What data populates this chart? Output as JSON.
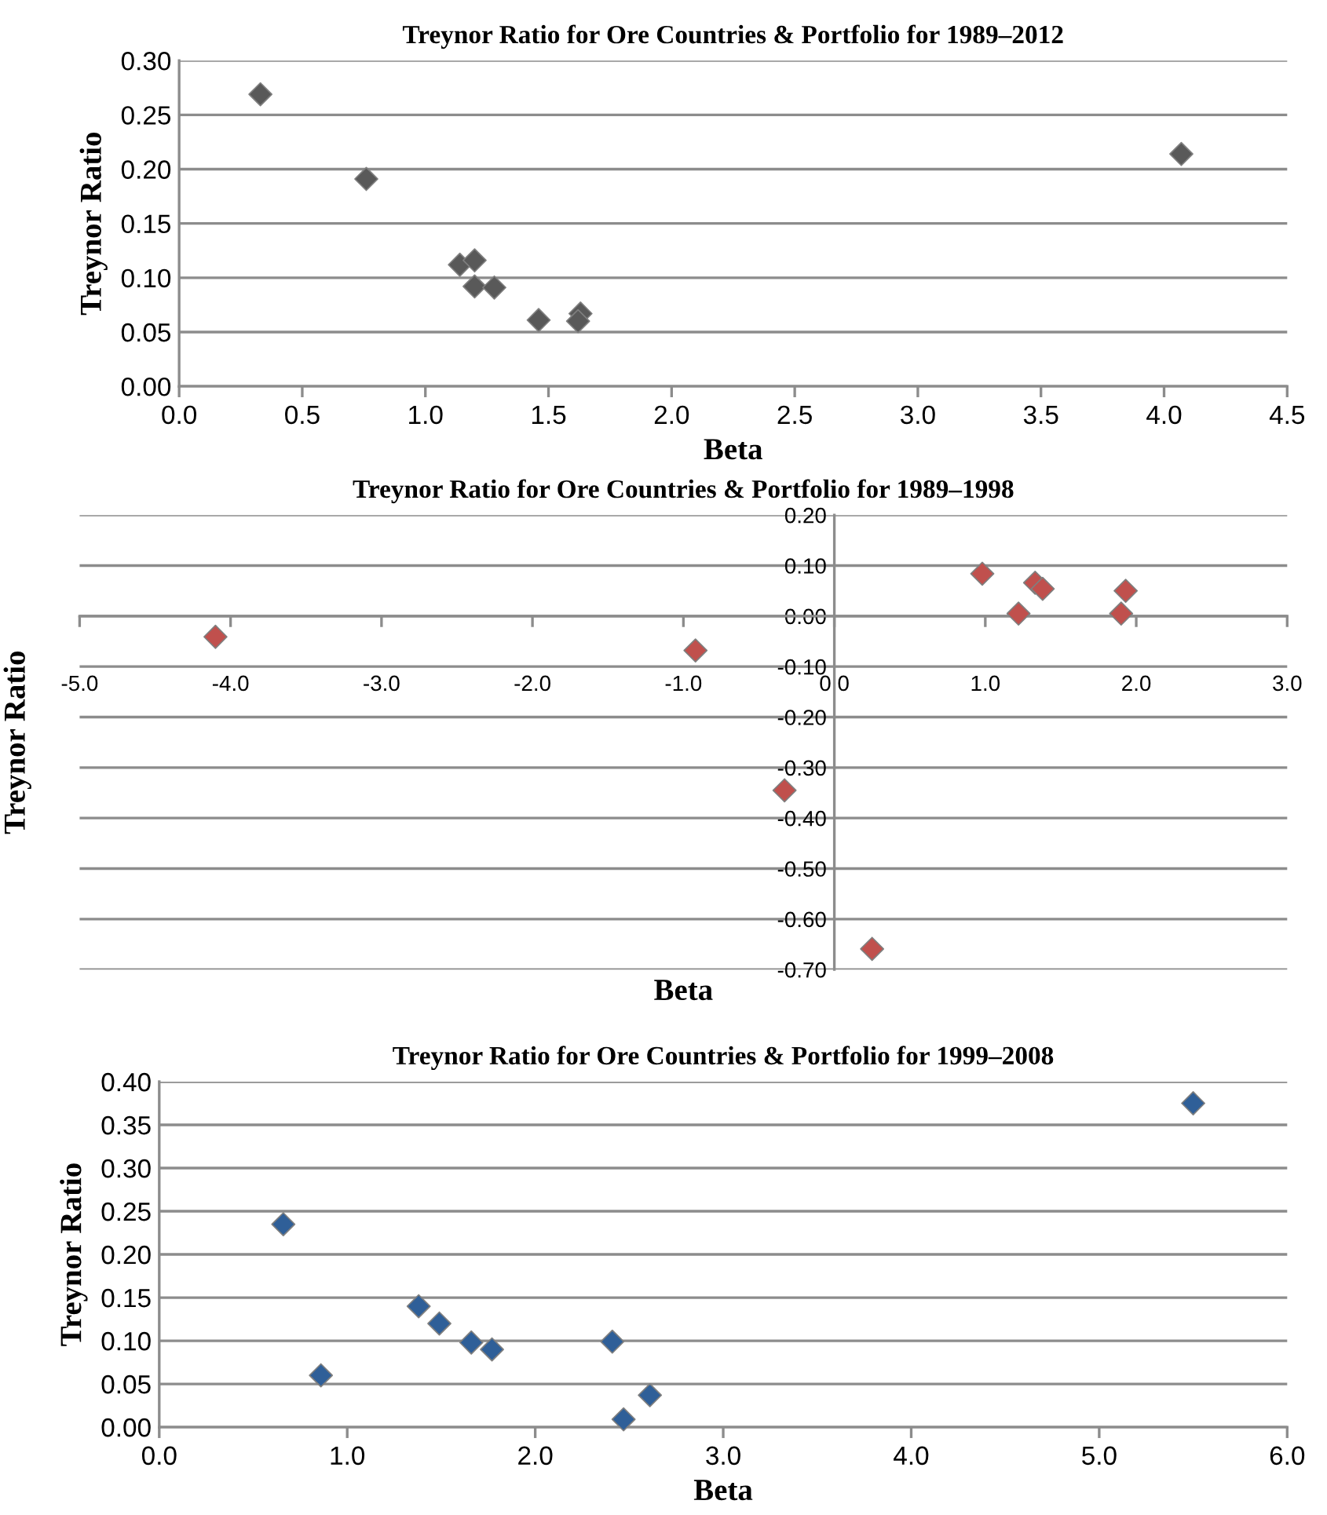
{
  "chart_data": [
    {
      "type": "scatter",
      "title": "Treynor Ratio for Ore Countries & Portfolio for 1989–2012",
      "xlabel": "Beta",
      "ylabel": "Treynor Ratio",
      "marker": "diamond",
      "grid": "y",
      "series": [
        {
          "color": "#595959",
          "x": [
            0.33,
            0.76,
            1.14,
            1.2,
            1.2,
            1.28,
            1.46,
            1.63,
            1.62,
            4.07
          ],
          "values": [
            0.269,
            0.191,
            0.112,
            0.116,
            0.092,
            0.091,
            0.061,
            0.067,
            0.06,
            0.214
          ]
        }
      ],
      "xlim": [
        0,
        4.5
      ],
      "ylim": [
        0,
        0.3
      ],
      "xticks": [
        {
          "value": 0,
          "label": "0.0"
        },
        {
          "value": 0.5,
          "label": "0.5"
        },
        {
          "value": 1,
          "label": "1.0"
        },
        {
          "value": 1.5,
          "label": "1.5"
        },
        {
          "value": 2,
          "label": "2.0"
        },
        {
          "value": 2.5,
          "label": "2.5"
        },
        {
          "value": 3,
          "label": "3.0"
        },
        {
          "value": 3.5,
          "label": "3.5"
        },
        {
          "value": 4,
          "label": "4.0"
        },
        {
          "value": 4.5,
          "label": "4.5"
        }
      ],
      "yticks": [
        {
          "value": 0,
          "label": "0.00"
        },
        {
          "value": 0.05,
          "label": "0.05"
        },
        {
          "value": 0.1,
          "label": "0.10"
        },
        {
          "value": 0.15,
          "label": "0.15"
        },
        {
          "value": 0.2,
          "label": "0.20"
        },
        {
          "value": 0.25,
          "label": "0.25"
        },
        {
          "value": 0.3,
          "label": "0.30"
        }
      ]
    },
    {
      "type": "scatter",
      "title": "Treynor Ratio for Ore Countries & Portfolio for 1989–1998",
      "xlabel": "Beta",
      "ylabel": "Treynor Ratio",
      "marker": "diamond",
      "grid": "y",
      "series": [
        {
          "color": "#c0504d",
          "x": [
            -4.1,
            -0.92,
            -0.33,
            0.25,
            0.98,
            1.22,
            1.33,
            1.38,
            1.9,
            1.93
          ],
          "values": [
            -0.041,
            -0.068,
            -0.345,
            -0.659,
            0.084,
            0.005,
            0.066,
            0.054,
            0.005,
            0.05
          ]
        }
      ],
      "xlim": [
        -5,
        3
      ],
      "ylim": [
        -0.7,
        0.2
      ],
      "xticks": [
        {
          "value": -5,
          "label": "-5.0"
        },
        {
          "value": -4,
          "label": "-4.0"
        },
        {
          "value": -3,
          "label": "-3.0"
        },
        {
          "value": -2,
          "label": "-2.0"
        },
        {
          "value": -1,
          "label": "-1.0"
        },
        {
          "value": 0,
          "label": "0.0"
        },
        {
          "value": 1,
          "label": "1.0"
        },
        {
          "value": 2,
          "label": "2.0"
        },
        {
          "value": 3,
          "label": "3.0"
        }
      ],
      "yticks": [
        {
          "value": -0.7,
          "label": "-0.70"
        },
        {
          "value": -0.6,
          "label": "-0.60"
        },
        {
          "value": -0.5,
          "label": "-0.50"
        },
        {
          "value": -0.4,
          "label": "-0.40"
        },
        {
          "value": -0.3,
          "label": "-0.30"
        },
        {
          "value": -0.2,
          "label": "-0.20"
        },
        {
          "value": -0.1,
          "label": "-0.10"
        },
        {
          "value": 0,
          "label": "0.00"
        },
        {
          "value": 0.1,
          "label": "0.10"
        },
        {
          "value": 0.2,
          "label": "0.20"
        }
      ]
    },
    {
      "type": "scatter",
      "title": "Treynor Ratio for Ore Countries & Portfolio for 1999–2008",
      "xlabel": "Beta",
      "ylabel": "Treynor Ratio",
      "marker": "diamond",
      "grid": "y",
      "series": [
        {
          "color": "#2f5f98",
          "x": [
            0.66,
            0.86,
            1.38,
            1.49,
            1.66,
            1.77,
            2.41,
            2.47,
            2.61,
            5.5
          ],
          "values": [
            0.235,
            0.06,
            0.14,
            0.12,
            0.098,
            0.09,
            0.099,
            0.009,
            0.037,
            0.375
          ]
        }
      ],
      "xlim": [
        0,
        6
      ],
      "ylim": [
        0,
        0.4
      ],
      "xticks": [
        {
          "value": 0,
          "label": "0.0"
        },
        {
          "value": 1,
          "label": "1.0"
        },
        {
          "value": 2,
          "label": "2.0"
        },
        {
          "value": 3,
          "label": "3.0"
        },
        {
          "value": 4,
          "label": "4.0"
        },
        {
          "value": 5,
          "label": "5.0"
        },
        {
          "value": 6,
          "label": "6.0"
        }
      ],
      "yticks": [
        {
          "value": 0,
          "label": "0.00"
        },
        {
          "value": 0.05,
          "label": "0.05"
        },
        {
          "value": 0.1,
          "label": "0.10"
        },
        {
          "value": 0.15,
          "label": "0.15"
        },
        {
          "value": 0.2,
          "label": "0.20"
        },
        {
          "value": 0.25,
          "label": "0.25"
        },
        {
          "value": 0.3,
          "label": "0.30"
        },
        {
          "value": 0.35,
          "label": "0.35"
        },
        {
          "value": 0.4,
          "label": "0.40"
        }
      ]
    }
  ]
}
